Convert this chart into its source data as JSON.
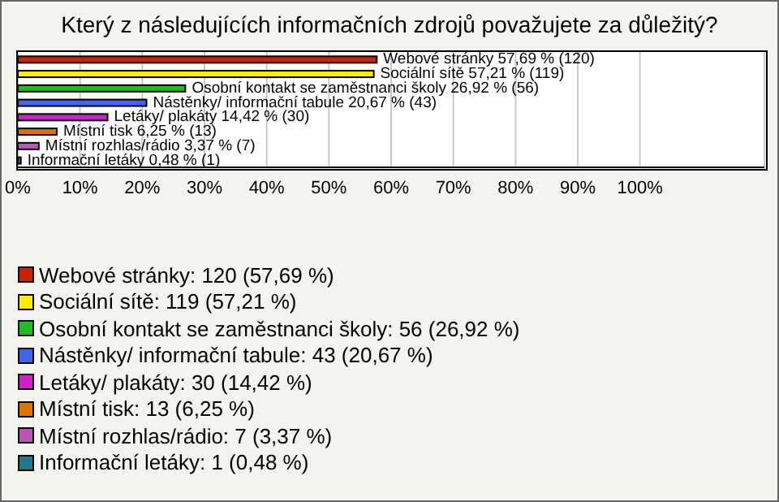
{
  "chart_data": {
    "type": "bar",
    "orientation": "horizontal",
    "stacked": true,
    "title": "Který z následujících informačních zdrojů považujete za důležitý?",
    "categories": [
      null,
      null,
      null,
      null,
      null,
      null,
      null,
      null
    ],
    "xlim": [
      0,
      120
    ],
    "xticks": [
      {
        "value": 0,
        "label": "0%"
      },
      {
        "value": 10,
        "label": "10%"
      },
      {
        "value": 20,
        "label": "20%"
      },
      {
        "value": 30,
        "label": "30%"
      },
      {
        "value": 40,
        "label": "40%"
      },
      {
        "value": 50,
        "label": "50%"
      },
      {
        "value": 60,
        "label": "60%"
      },
      {
        "value": 70,
        "label": "70%"
      },
      {
        "value": 80,
        "label": "80%"
      },
      {
        "value": 90,
        "label": "90%"
      },
      {
        "value": 100,
        "label": "100%"
      }
    ],
    "grid": "x",
    "legend": "bottom",
    "tick_labels": "x",
    "series": [
      {
        "name": "Webové stránky: 120 (57,69 %)",
        "color": "#cc2200",
        "values": [
          57.69,
          null,
          null,
          null,
          null,
          null,
          null,
          null
        ],
        "value_labels": [
          "Webové stránky 57,69 % (120)",
          null,
          null,
          null,
          null,
          null,
          null,
          null
        ]
      },
      {
        "name": "Sociální sítě: 119 (57,21 %)",
        "color": "#ffee00",
        "values": [
          null,
          57.21,
          null,
          null,
          null,
          null,
          null,
          null
        ],
        "value_labels": [
          null,
          "Sociální sítě 57,21 % (119)",
          null,
          null,
          null,
          null,
          null,
          null
        ]
      },
      {
        "name": "Osobní kontakt se zaměstnanci školy: 56 (26,92 %)",
        "color": "#22bb22",
        "values": [
          null,
          null,
          26.92,
          null,
          null,
          null,
          null,
          null
        ],
        "value_labels": [
          null,
          null,
          "Osobní kontakt se zaměstnanci školy 26,92 % (56)",
          null,
          null,
          null,
          null,
          null
        ]
      },
      {
        "name": "Nástěnky/ informační tabule: 43 (20,67 %)",
        "color": "#4466ee",
        "values": [
          null,
          null,
          null,
          20.67,
          null,
          null,
          null,
          null
        ],
        "value_labels": [
          null,
          null,
          null,
          "Nástěnky/ informační tabule 20,67 % (43)",
          null,
          null,
          null,
          null
        ]
      },
      {
        "name": "Letáky/ plakáty: 30 (14,42 %)",
        "color": "#cc22cc",
        "values": [
          null,
          null,
          null,
          null,
          14.42,
          null,
          null,
          null
        ],
        "value_labels": [
          null,
          null,
          null,
          null,
          "Letáky/ plakáty 14,42 % (30)",
          null,
          null,
          null
        ]
      },
      {
        "name": "Místní tisk: 13 (6,25 %)",
        "color": "#e07000",
        "values": [
          null,
          null,
          null,
          null,
          null,
          6.25,
          null,
          null
        ],
        "value_labels": [
          null,
          null,
          null,
          null,
          null,
          "Místní tisk 6,25 % (13)",
          null,
          null
        ]
      },
      {
        "name": "Místní rozhlas/rádio: 7 (3,37 %)",
        "color": "#bb55bb",
        "values": [
          null,
          null,
          null,
          null,
          null,
          null,
          3.37,
          null
        ],
        "value_labels": [
          null,
          null,
          null,
          null,
          null,
          null,
          "Místní rozhlas/rádio 3,37 % (7)",
          null
        ]
      },
      {
        "name": "Informační letáky: 1 (0,48 %)",
        "color": "#227788",
        "values": [
          null,
          null,
          null,
          null,
          null,
          null,
          null,
          0.48
        ],
        "value_labels": [
          null,
          null,
          null,
          null,
          null,
          null,
          null,
          "Informační letáky 0,48 % (1)"
        ]
      }
    ]
  }
}
